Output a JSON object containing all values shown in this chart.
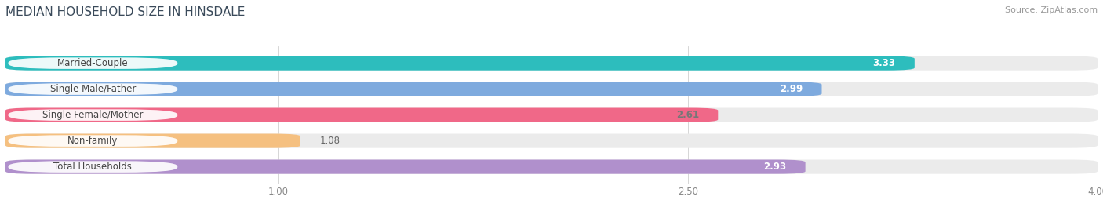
{
  "title": "MEDIAN HOUSEHOLD SIZE IN HINSDALE",
  "source": "Source: ZipAtlas.com",
  "categories": [
    "Married-Couple",
    "Single Male/Father",
    "Single Female/Mother",
    "Non-family",
    "Total Households"
  ],
  "values": [
    3.33,
    2.99,
    2.61,
    1.08,
    2.93
  ],
  "bar_colors": [
    "#2dbdbd",
    "#7eaade",
    "#f06888",
    "#f5c080",
    "#b090cc"
  ],
  "bar_bg_colors": [
    "#e8f5f5",
    "#edf1f8",
    "#fce8ee",
    "#fdf5ec",
    "#f3eef8"
  ],
  "value_colors": [
    "white",
    "white",
    "#777777",
    "#777777",
    "white"
  ],
  "xlim_start": 0.0,
  "xlim_end": 4.0,
  "xticks": [
    1.0,
    2.5,
    4.0
  ],
  "title_color": "#3a4a5a",
  "source_color": "#999999",
  "title_fontsize": 11,
  "source_fontsize": 8,
  "bar_label_fontsize": 8.5,
  "value_fontsize": 8.5,
  "tick_fontsize": 8.5,
  "bar_height": 0.55,
  "bar_gap": 1.0,
  "label_text_color": "#444444",
  "background_color": "#ffffff",
  "track_color": "#ebebeb"
}
